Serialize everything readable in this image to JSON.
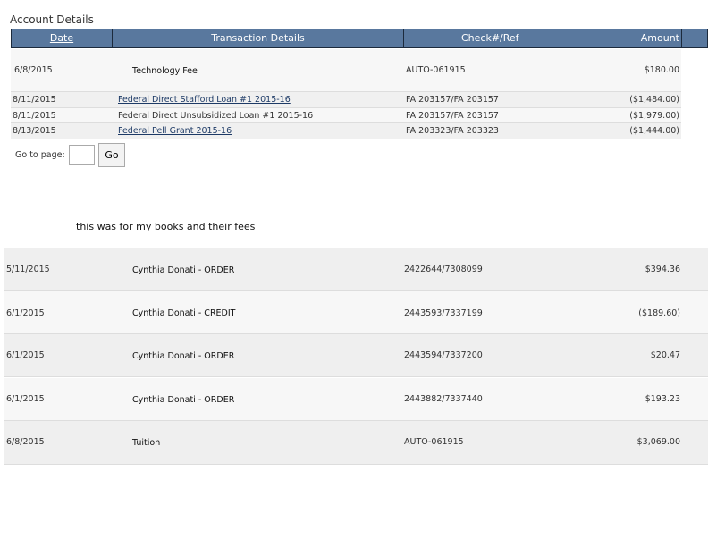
{
  "title": "Account Details",
  "header": {
    "date": "Date",
    "details": "Transaction Details",
    "ref": "Check#/Ref",
    "amount": "Amount"
  },
  "rows": [
    {
      "date": "6/8/2015",
      "details": "Technology Fee",
      "ref": "AUTO-061915",
      "amount": "$180.00"
    },
    {
      "date": "8/11/2015",
      "details": "Federal Direct Stafford Loan #1 2015-16",
      "ref": "FA 203157/FA 203157",
      "amount": "($1,484.00)"
    },
    {
      "date": "8/11/2015",
      "details": "Federal Direct Unsubsidized Loan #1 2015-16",
      "ref": "FA 203157/FA 203157",
      "amount": "($1,979.00)"
    },
    {
      "date": "8/13/2015",
      "details": "Federal Pell Grant 2015-16",
      "ref": "FA 203323/FA 203323",
      "amount": "($1,444.00)"
    }
  ],
  "pager": {
    "label": "Go to page:",
    "value": "",
    "button": "Go"
  },
  "note": "this was for my books and their fees",
  "lower_rows": [
    {
      "date": "5/11/2015",
      "details": "Cynthia Donati - ORDER",
      "ref": "2422644/7308099",
      "amount": "$394.36"
    },
    {
      "date": "6/1/2015",
      "details": "Cynthia Donati - CREDIT",
      "ref": "2443593/7337199",
      "amount": "($189.60)"
    },
    {
      "date": "6/1/2015",
      "details": "Cynthia Donati - ORDER",
      "ref": "2443594/7337200",
      "amount": "$20.47"
    },
    {
      "date": "6/1/2015",
      "details": "Cynthia Donati - ORDER",
      "ref": "2443882/7337440",
      "amount": "$193.23"
    },
    {
      "date": "6/8/2015",
      "details": "Tuition",
      "ref": "AUTO-061915",
      "amount": "$3,069.00"
    }
  ],
  "colors": {
    "header_bg": "#59789e",
    "link": "#1d3a66"
  }
}
